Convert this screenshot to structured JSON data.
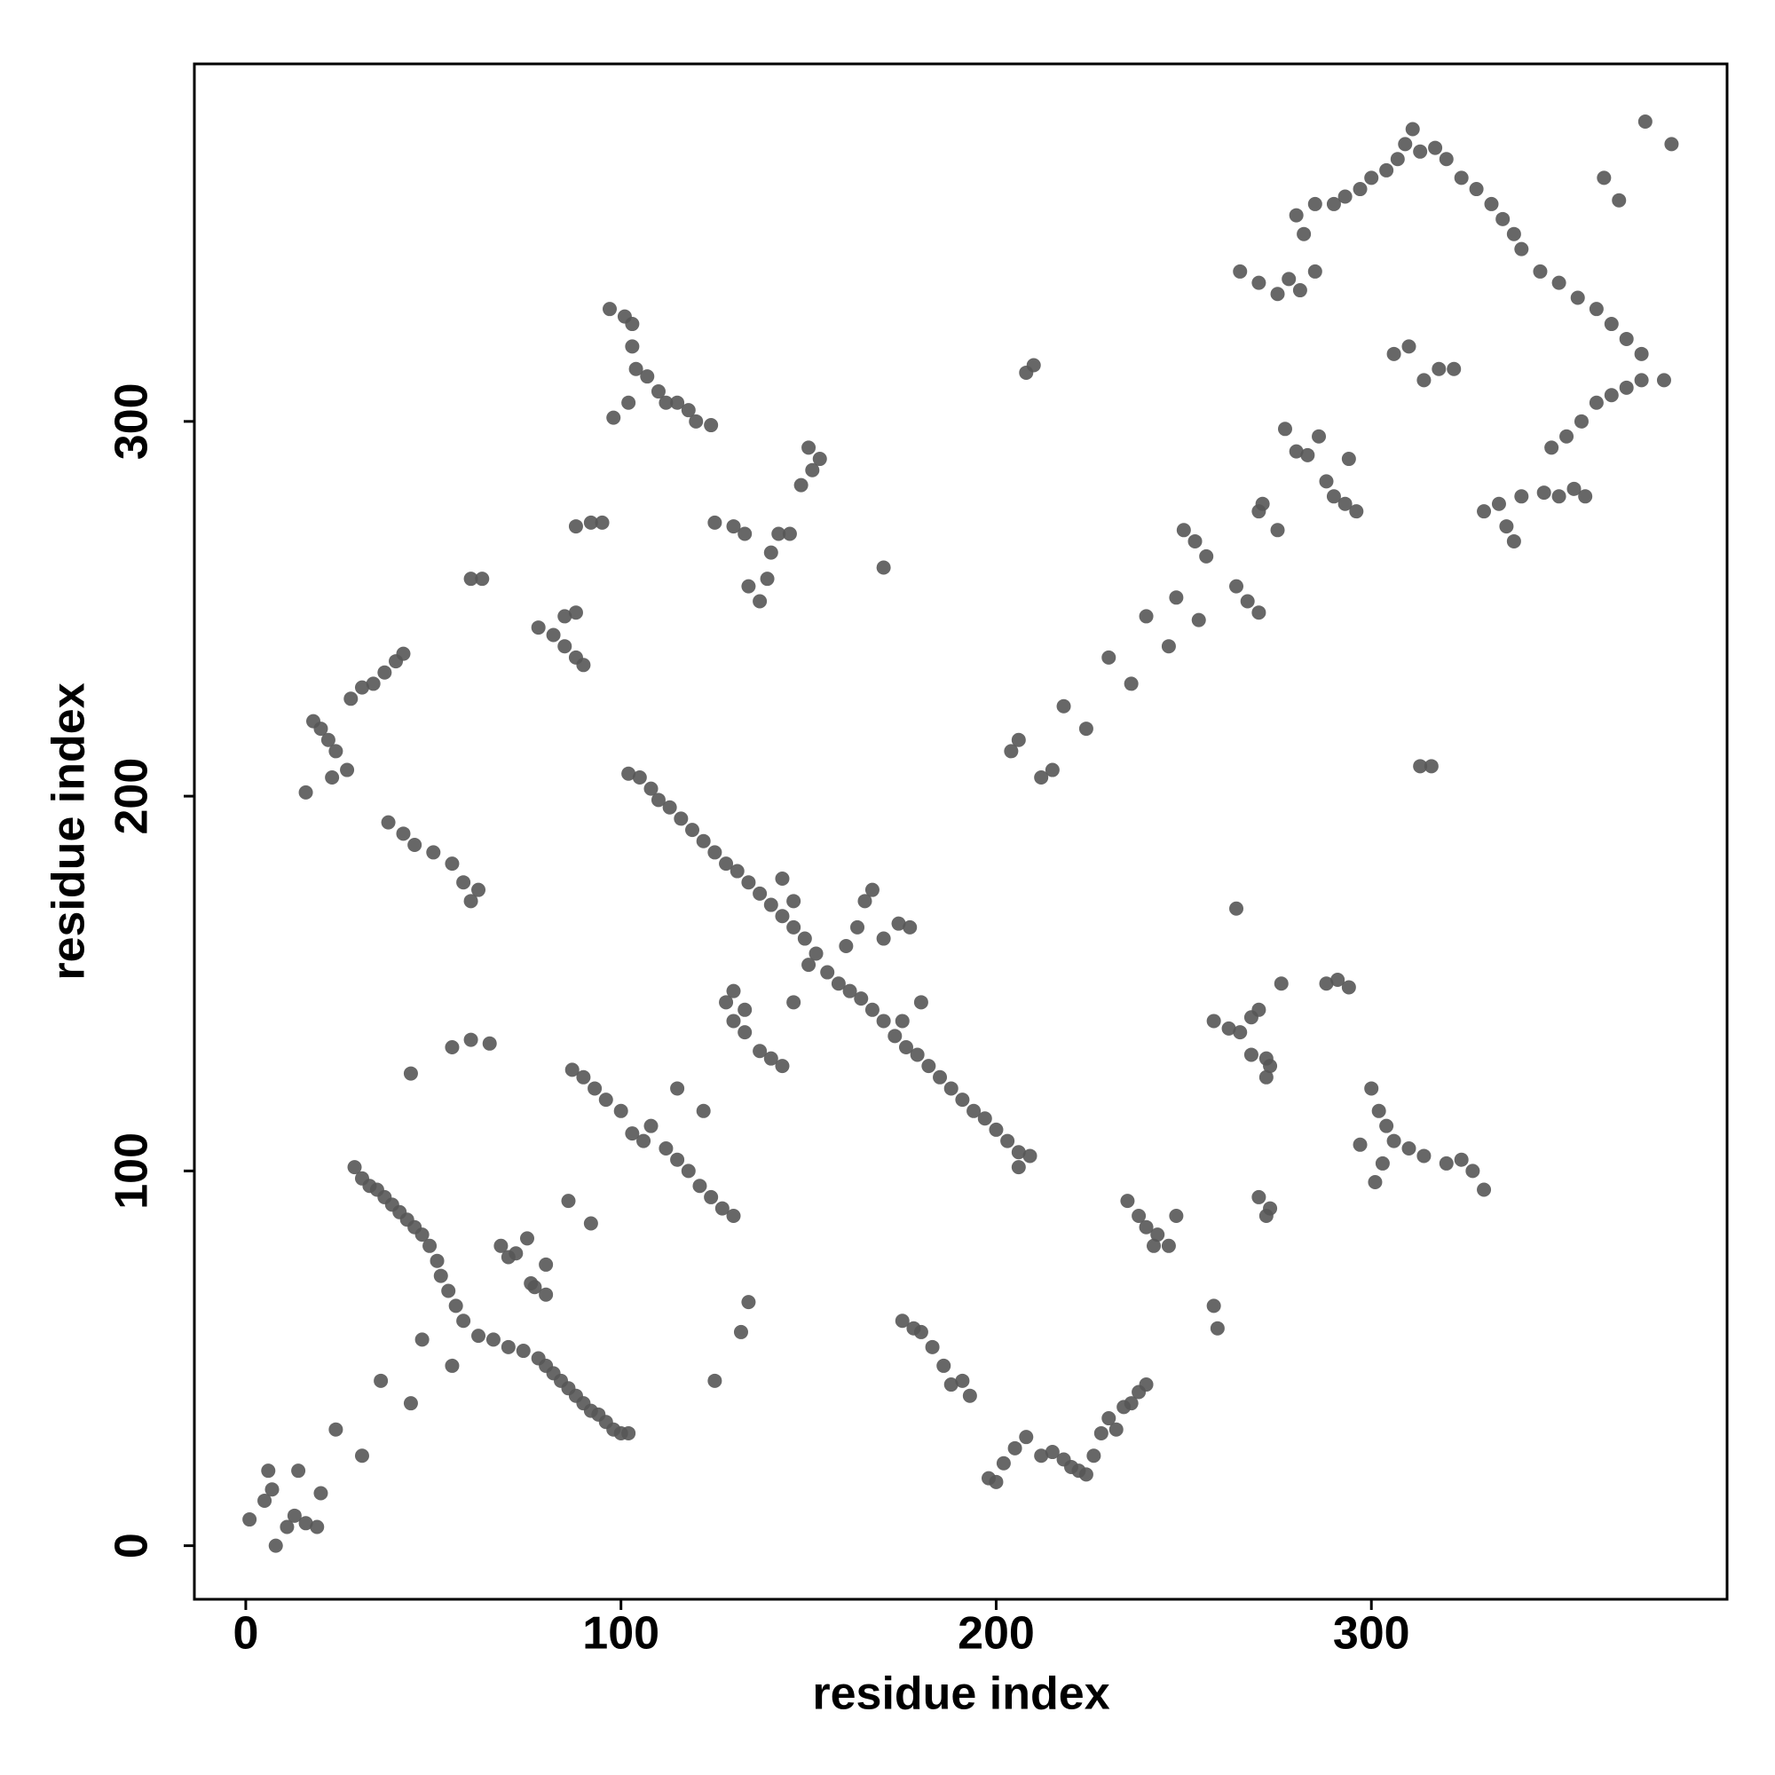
{
  "chart_data": {
    "type": "scatter",
    "x_label": "residue index",
    "y_label": "residue index",
    "xlim": [
      -13.7,
      394.8
    ],
    "ylim": [
      -14.3,
      395.4
    ],
    "xticks": [
      0,
      100,
      200,
      300
    ],
    "yticks": [
      0,
      100,
      200,
      300
    ],
    "color": "#575757",
    "x": [
      1,
      5,
      6,
      7,
      8,
      11,
      13,
      14,
      16,
      19,
      20,
      24,
      31,
      29,
      31,
      33,
      35,
      37,
      39,
      41,
      43,
      45,
      47,
      49,
      51,
      52,
      54,
      56,
      58,
      62,
      66,
      70,
      74,
      78,
      80,
      82,
      84,
      86,
      88,
      90,
      92,
      94,
      96,
      98,
      100,
      102,
      36,
      44,
      47,
      55,
      68,
      70,
      72,
      75,
      76,
      77,
      80,
      80,
      86,
      92,
      87,
      90,
      93,
      96,
      100,
      103,
      106,
      108,
      112,
      115,
      118,
      121,
      124,
      127,
      130,
      115,
      122,
      125,
      132,
      134,
      55,
      60,
      65,
      44,
      102,
      105,
      108,
      110,
      113,
      116,
      119,
      122,
      125,
      128,
      131,
      134,
      137,
      140,
      143,
      146,
      149,
      152,
      155,
      158,
      161,
      164,
      167,
      170,
      173,
      176,
      179,
      182,
      185,
      188,
      191,
      194,
      197,
      200,
      203,
      206,
      209,
      206,
      128,
      130,
      133,
      137,
      140,
      143,
      146,
      150,
      160,
      163,
      165,
      167,
      170,
      174,
      177,
      180,
      175,
      143,
      146,
      130,
      133,
      18,
      20,
      22,
      24,
      23,
      27,
      28,
      31,
      34,
      37,
      40,
      42,
      16,
      38,
      42,
      45,
      50,
      55,
      58,
      60,
      62,
      78,
      82,
      85,
      88,
      90,
      85,
      88,
      88,
      92,
      95,
      60,
      63,
      97,
      101,
      103,
      103,
      104,
      107,
      110,
      112,
      115,
      118,
      120,
      124,
      98,
      102,
      125,
      130,
      133,
      134,
      137,
      139,
      140,
      142,
      145,
      148,
      150,
      153,
      151,
      170,
      208,
      210,
      204,
      206,
      212,
      215,
      218,
      224,
      230,
      236,
      240,
      246,
      248,
      254,
      250,
      253,
      256,
      264,
      267,
      270,
      270,
      271,
      275,
      277,
      280,
      283,
      286,
      288,
      290,
      293,
      294,
      296,
      265,
      270,
      275,
      278,
      281,
      285,
      280,
      282,
      285,
      290,
      293,
      297,
      300,
      304,
      307,
      309,
      311,
      313,
      317,
      320,
      324,
      328,
      332,
      335,
      338,
      340,
      345,
      350,
      355,
      360,
      364,
      368,
      372,
      362,
      366,
      373,
      380,
      306,
      310,
      314,
      318,
      322,
      313,
      316,
      348,
      352,
      356,
      360,
      364,
      368,
      372,
      378,
      330,
      334,
      336,
      338,
      340,
      346,
      350,
      354,
      357,
      258,
      262,
      265,
      268,
      270,
      272,
      272,
      268,
      273,
      264,
      276,
      288,
      291,
      294,
      270,
      272,
      273,
      235,
      238,
      240,
      243,
      246,
      248,
      242,
      258,
      259,
      300,
      302,
      304,
      306,
      310,
      314,
      320,
      324,
      327,
      330,
      301,
      303,
      297,
      175,
      178,
      180,
      183,
      186,
      188,
      191,
      193,
      198,
      200,
      202,
      205,
      208,
      212,
      215,
      218,
      220,
      222,
      224,
      226,
      228,
      230,
      232,
      234,
      236,
      238,
      240
    ],
    "values": [
      7,
      12,
      20,
      15,
      0,
      5,
      8,
      20,
      6,
      5,
      14,
      31,
      24,
      101,
      98,
      96,
      95,
      93,
      91,
      89,
      87,
      85,
      83,
      80,
      76,
      72,
      68,
      64,
      60,
      56,
      55,
      53,
      52,
      50,
      48,
      46,
      44,
      42,
      40,
      38,
      36,
      35,
      33,
      31,
      30,
      30,
      44,
      38,
      55,
      48,
      80,
      77,
      78,
      82,
      70,
      69,
      67,
      75,
      92,
      86,
      127,
      125,
      122,
      119,
      116,
      110,
      108,
      112,
      106,
      103,
      100,
      96,
      93,
      90,
      88,
      122,
      116,
      44,
      57,
      65,
      133,
      135,
      134,
      126,
      206,
      205,
      202,
      199,
      197,
      194,
      191,
      188,
      185,
      182,
      180,
      177,
      174,
      171,
      168,
      165,
      162,
      158,
      153,
      150,
      148,
      146,
      143,
      140,
      136,
      133,
      131,
      128,
      125,
      122,
      119,
      116,
      114,
      111,
      108,
      105,
      104,
      101,
      145,
      140,
      137,
      132,
      130,
      128,
      145,
      155,
      160,
      165,
      172,
      175,
      162,
      166,
      165,
      145,
      140,
      178,
      172,
      148,
      143,
      220,
      218,
      215,
      212,
      205,
      207,
      226,
      229,
      230,
      233,
      236,
      238,
      201,
      193,
      190,
      187,
      185,
      182,
      177,
      172,
      175,
      245,
      243,
      240,
      237,
      235,
      248,
      249,
      272,
      273,
      273,
      258,
      258,
      330,
      328,
      326,
      320,
      314,
      312,
      308,
      305,
      305,
      303,
      300,
      299,
      301,
      305,
      273,
      272,
      270,
      256,
      252,
      258,
      265,
      270,
      270,
      283,
      293,
      290,
      287,
      261,
      313,
      315,
      212,
      215,
      205,
      207,
      224,
      218,
      237,
      230,
      248,
      240,
      253,
      247,
      271,
      268,
      264,
      256,
      252,
      249,
      276,
      278,
      271,
      298,
      292,
      291,
      296,
      284,
      280,
      278,
      290,
      276,
      340,
      337,
      334,
      338,
      335,
      340,
      355,
      350,
      358,
      358,
      360,
      362,
      365,
      367,
      370,
      374,
      378,
      372,
      373,
      370,
      365,
      362,
      358,
      354,
      350,
      346,
      340,
      337,
      333,
      330,
      326,
      322,
      318,
      365,
      359,
      380,
      374,
      318,
      320,
      311,
      314,
      314,
      208,
      208,
      293,
      296,
      300,
      305,
      307,
      309,
      311,
      311,
      276,
      278,
      272,
      268,
      280,
      281,
      280,
      282,
      280,
      140,
      138,
      137,
      141,
      143,
      130,
      125,
      131,
      128,
      170,
      150,
      150,
      151,
      149,
      93,
      88,
      90,
      92,
      88,
      85,
      83,
      80,
      88,
      80,
      64,
      58,
      122,
      116,
      112,
      108,
      106,
      104,
      102,
      103,
      100,
      95,
      97,
      102,
      107,
      60,
      58,
      57,
      53,
      48,
      43,
      44,
      40,
      18,
      17,
      22,
      26,
      29,
      24,
      25,
      23,
      21,
      20,
      19,
      24,
      30,
      34,
      31,
      37,
      38,
      41,
      43
    ]
  }
}
